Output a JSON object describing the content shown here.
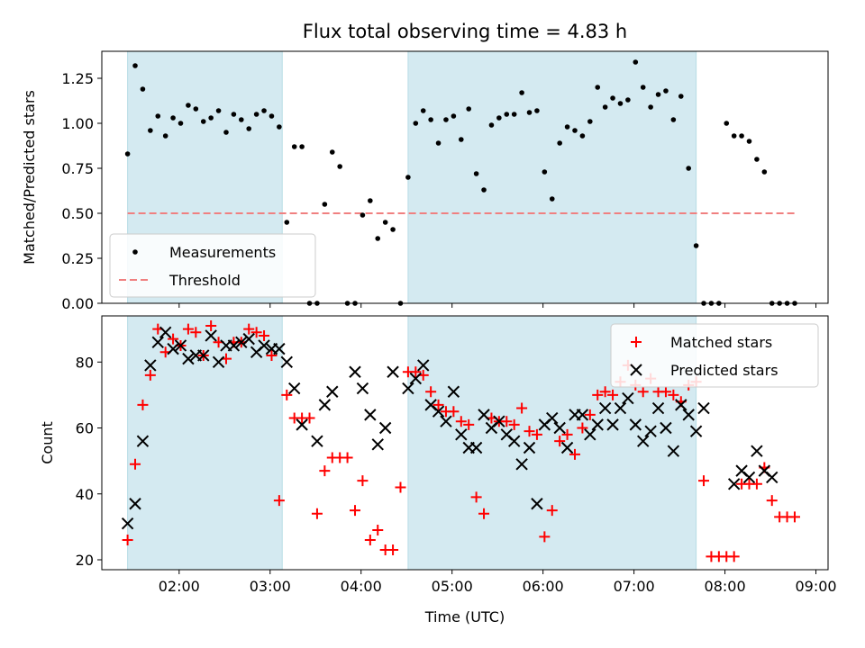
{
  "chart_data": [
    {
      "type": "scatter",
      "title": "Flux total observing time = 4.83 h",
      "ylabel": "Matched/Predicted stars",
      "xlabel": "",
      "xlim": [
        "01:09",
        "09:08"
      ],
      "ylim": [
        0,
        1.4
      ],
      "yticks": [
        "0.00",
        "0.25",
        "0.50",
        "0.75",
        "1.00",
        "1.25"
      ],
      "legend_position": "lower-left",
      "shaded_intervals": [
        [
          "01:26",
          "03:08"
        ],
        [
          "04:31",
          "07:41"
        ]
      ],
      "threshold": {
        "name": "Threshold",
        "value": 0.5,
        "x": [
          "01:26",
          "08:46"
        ],
        "color": "#f08080"
      },
      "series": [
        {
          "name": "Measurements",
          "color": "#000000",
          "marker": "dot",
          "x": [
            "01:26",
            "01:31",
            "01:36",
            "01:41",
            "01:46",
            "01:51",
            "01:56",
            "02:01",
            "02:06",
            "02:11",
            "02:16",
            "02:21",
            "02:26",
            "02:31",
            "02:36",
            "02:41",
            "02:46",
            "02:51",
            "02:56",
            "03:01",
            "03:06",
            "03:11",
            "03:16",
            "03:21",
            "03:26",
            "03:31",
            "03:36",
            "03:41",
            "03:46",
            "03:51",
            "03:56",
            "04:01",
            "04:06",
            "04:11",
            "04:16",
            "04:21",
            "04:26",
            "04:31",
            "04:36",
            "04:41",
            "04:46",
            "04:51",
            "04:56",
            "05:01",
            "05:06",
            "05:11",
            "05:16",
            "05:21",
            "05:26",
            "05:31",
            "05:36",
            "05:41",
            "05:46",
            "05:51",
            "05:56",
            "06:01",
            "06:06",
            "06:11",
            "06:16",
            "06:21",
            "06:26",
            "06:31",
            "06:36",
            "06:41",
            "06:46",
            "06:51",
            "06:56",
            "07:01",
            "07:06",
            "07:11",
            "07:16",
            "07:21",
            "07:26",
            "07:31",
            "07:36",
            "07:41",
            "07:46",
            "07:51",
            "07:56",
            "08:01",
            "08:06",
            "08:11",
            "08:16",
            "08:21",
            "08:26",
            "08:31",
            "08:36",
            "08:41",
            "08:46"
          ],
          "y": [
            0.83,
            1.32,
            1.19,
            0.96,
            1.04,
            0.93,
            1.03,
            1.0,
            1.1,
            1.08,
            1.01,
            1.03,
            1.07,
            0.95,
            1.05,
            1.02,
            0.97,
            1.05,
            1.07,
            1.04,
            0.98,
            0.45,
            0.87,
            0.87,
            0,
            0,
            0.55,
            0.84,
            0.76,
            0,
            0,
            0.49,
            0.57,
            0.36,
            0.45,
            0.41,
            0,
            0.7,
            1.0,
            1.07,
            1.02,
            0.89,
            1.02,
            1.04,
            0.91,
            1.08,
            0.72,
            0.63,
            0.99,
            1.03,
            1.05,
            1.05,
            1.17,
            1.06,
            1.07,
            0.73,
            0.58,
            0.89,
            0.98,
            0.96,
            0.93,
            1.01,
            1.2,
            1.09,
            1.14,
            1.11,
            1.13,
            1.34,
            1.2,
            1.09,
            1.16,
            1.18,
            1.02,
            1.15,
            0.75,
            0.32,
            0,
            0,
            0,
            1.0,
            0.93,
            0.93,
            0.9,
            0.8,
            0.73,
            0,
            0,
            0,
            0
          ]
        }
      ]
    },
    {
      "type": "scatter",
      "title": "",
      "ylabel": "Count",
      "xlabel": "Time (UTC)",
      "xlim": [
        "01:09",
        "09:08"
      ],
      "ylim": [
        17,
        94
      ],
      "yticks": [
        "20",
        "40",
        "60",
        "80"
      ],
      "xticks": [
        "02:00",
        "03:00",
        "04:00",
        "05:00",
        "06:00",
        "07:00",
        "08:00",
        "09:00"
      ],
      "legend_position": "upper-right",
      "shaded_intervals": [
        [
          "01:26",
          "03:08"
        ],
        [
          "04:31",
          "07:41"
        ]
      ],
      "series": [
        {
          "name": "Matched stars",
          "color": "#ff0000",
          "marker": "plus",
          "x": [
            "01:26",
            "01:31",
            "01:36",
            "01:41",
            "01:46",
            "01:51",
            "01:56",
            "02:01",
            "02:06",
            "02:11",
            "02:16",
            "02:21",
            "02:26",
            "02:31",
            "02:36",
            "02:41",
            "02:46",
            "02:51",
            "02:56",
            "03:01",
            "03:06",
            "03:11",
            "03:16",
            "03:21",
            "03:26",
            "03:31",
            "03:36",
            "03:41",
            "03:46",
            "03:51",
            "03:56",
            "04:01",
            "04:06",
            "04:11",
            "04:16",
            "04:21",
            "04:26",
            "04:31",
            "04:36",
            "04:41",
            "04:46",
            "04:51",
            "04:56",
            "05:01",
            "05:06",
            "05:11",
            "05:16",
            "05:21",
            "05:26",
            "05:31",
            "05:36",
            "05:41",
            "05:46",
            "05:51",
            "05:56",
            "06:01",
            "06:06",
            "06:11",
            "06:16",
            "06:21",
            "06:26",
            "06:31",
            "06:36",
            "06:41",
            "06:46",
            "06:51",
            "06:56",
            "07:01",
            "07:06",
            "07:11",
            "07:16",
            "07:21",
            "07:26",
            "07:31",
            "07:36",
            "07:41",
            "07:46",
            "07:51",
            "07:56",
            "08:01",
            "08:06",
            "08:11",
            "08:16",
            "08:21",
            "08:26",
            "08:31",
            "08:36",
            "08:41",
            "08:46"
          ],
          "y": [
            26,
            49,
            67,
            76,
            90,
            83,
            87,
            85,
            90,
            89,
            82,
            91,
            86,
            81,
            86,
            86,
            90,
            89,
            88,
            82,
            38,
            70,
            63,
            63,
            63,
            34,
            47,
            51,
            51,
            51,
            35,
            44,
            26,
            29,
            23,
            23,
            42,
            77,
            77,
            76,
            71,
            67,
            65,
            65,
            62,
            61,
            39,
            34,
            63,
            62,
            62,
            61,
            66,
            59,
            58,
            27,
            35,
            56,
            58,
            52,
            60,
            64,
            70,
            71,
            70,
            74,
            79,
            73,
            71,
            75,
            71,
            71,
            70,
            68,
            73,
            74,
            44,
            21,
            21,
            21,
            21,
            43,
            43,
            43,
            48,
            38,
            33,
            33,
            33
          ]
        },
        {
          "name": "Predicted stars",
          "color": "#000000",
          "marker": "x",
          "x": [
            "01:26",
            "01:31",
            "01:36",
            "01:41",
            "01:46",
            "01:51",
            "01:56",
            "02:01",
            "02:06",
            "02:11",
            "02:16",
            "02:21",
            "02:26",
            "02:31",
            "02:36",
            "02:41",
            "02:46",
            "02:51",
            "02:56",
            "03:01",
            "03:06",
            "03:11",
            "03:16",
            "03:21",
            "03:31",
            "03:36",
            "03:41",
            "03:56",
            "04:01",
            "04:06",
            "04:11",
            "04:16",
            "04:21",
            "04:31",
            "04:36",
            "04:41",
            "04:46",
            "04:51",
            "04:56",
            "05:01",
            "05:06",
            "05:11",
            "05:16",
            "05:21",
            "05:26",
            "05:31",
            "05:36",
            "05:41",
            "05:46",
            "05:51",
            "05:56",
            "06:01",
            "06:06",
            "06:11",
            "06:16",
            "06:21",
            "06:26",
            "06:31",
            "06:36",
            "06:41",
            "06:46",
            "06:51",
            "06:56",
            "07:01",
            "07:06",
            "07:11",
            "07:16",
            "07:21",
            "07:26",
            "07:31",
            "07:36",
            "07:41",
            "07:46",
            "08:06",
            "08:11",
            "08:16",
            "08:21",
            "08:26",
            "08:31"
          ],
          "y": [
            31,
            37,
            56,
            79,
            86,
            89,
            84,
            85,
            81,
            82,
            82,
            88,
            80,
            85,
            85,
            86,
            87,
            83,
            85,
            84,
            84,
            80,
            72,
            61,
            56,
            67,
            71,
            77,
            72,
            64,
            55,
            60,
            77,
            72,
            75,
            79,
            67,
            65,
            62,
            71,
            58,
            54,
            54,
            64,
            60,
            62,
            58,
            56,
            49,
            54,
            37,
            61,
            63,
            60,
            54,
            64,
            64,
            58,
            61,
            66,
            61,
            66,
            69,
            61,
            56,
            59,
            66,
            60,
            53,
            67,
            64,
            59,
            66,
            43,
            47,
            45,
            53,
            47,
            45
          ]
        }
      ]
    }
  ]
}
